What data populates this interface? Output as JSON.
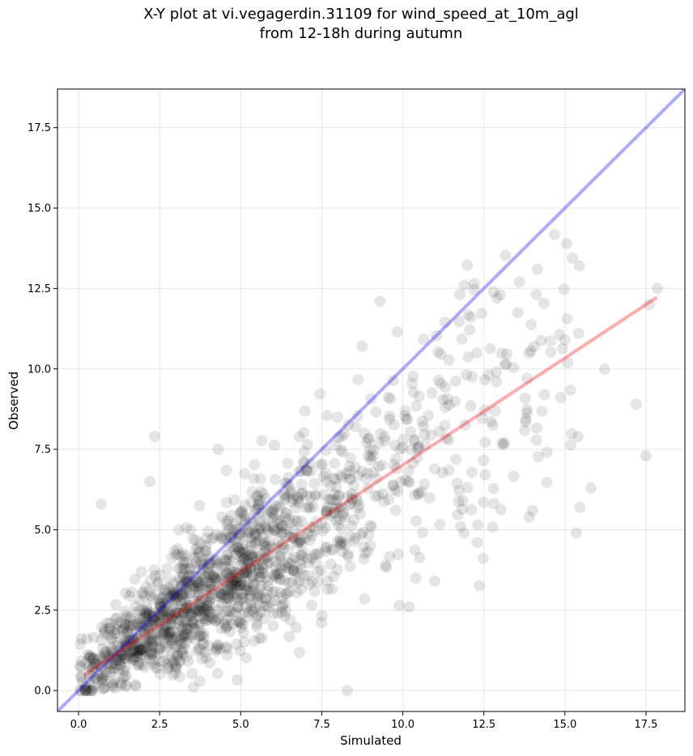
{
  "chart_data": {
    "type": "scatter",
    "title": {
      "line1": "X-Y plot at vi.vegagerdin.31109 for wind_speed_at_10m_agl",
      "line2": "from 12-18h during autumn"
    },
    "xlabel": "Simulated",
    "ylabel": "Observed",
    "xlim": [
      -0.65,
      18.7
    ],
    "ylim": [
      -0.65,
      18.7
    ],
    "xticks": [
      0.0,
      2.5,
      5.0,
      7.5,
      10.0,
      12.5,
      15.0,
      17.5
    ],
    "yticks": [
      0.0,
      2.5,
      5.0,
      7.5,
      10.0,
      12.5,
      15.0,
      17.5
    ],
    "xtick_labels": [
      "0.0",
      "2.5",
      "5.0",
      "7.5",
      "10.0",
      "12.5",
      "15.0",
      "17.5"
    ],
    "ytick_labels": [
      "0.0",
      "2.5",
      "5.0",
      "7.5",
      "10.0",
      "12.5",
      "15.0",
      "17.5"
    ],
    "grid": true,
    "identity_line": {
      "x": [
        -0.65,
        18.7
      ],
      "y": [
        -0.65,
        18.7
      ],
      "color": "#0000ff"
    },
    "fit_line": {
      "x": [
        0.2,
        17.8
      ],
      "y": [
        0.5,
        12.2
      ],
      "color": "#ff0000"
    },
    "point_color": "#000000",
    "highlighted_points": {
      "x": [
        0.7,
        2.35,
        2.2,
        4.3,
        15.05,
        15.45,
        13.0,
        9.3,
        11.9,
        12.8,
        12.9,
        13.6,
        17.6,
        17.85,
        17.2,
        17.5,
        15.8,
        15.35,
        15.4,
        12.3,
        10.2,
        10.4,
        13.9,
        14.0
      ],
      "y": [
        5.8,
        7.9,
        6.5,
        7.5,
        13.9,
        13.2,
        12.3,
        12.1,
        12.6,
        12.4,
        12.2,
        12.7,
        12.0,
        12.5,
        8.9,
        7.3,
        6.3,
        4.9,
        7.9,
        4.6,
        2.6,
        3.5,
        5.4,
        5.6
      ]
    },
    "bulk_points": {
      "count": 1500,
      "seed": 31109,
      "x_max": 17.5,
      "y_slope": 0.66,
      "y_intercept": 0.4
    }
  }
}
